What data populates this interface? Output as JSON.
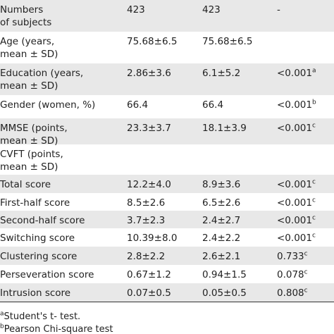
{
  "table": {
    "rows": [
      {
        "cells": [
          "Numbers\nof subjects",
          "423",
          "423",
          "-"
        ]
      },
      {
        "cells": [
          "Age (years,\nmean ± SD)",
          "75.68±6.5",
          "75.68±6.5"
        ]
      },
      {
        "cells": [
          "Education (years,\nmean ± SD)",
          "2.86±3.6",
          "6.1±5.2",
          "<0.001"
        ],
        "sup": "a"
      },
      {
        "cells": [
          "Gender (women, %)",
          "66.4",
          "66.4",
          "<0.001"
        ],
        "sup": "b"
      },
      {
        "cells": [
          "MMSE (points,\nmean ± SD)",
          "23.3±3.7",
          "18.1±3.9",
          "<0.001"
        ],
        "sup": "c"
      },
      {
        "cells": [
          "CVFT (points,\nmean ± SD)"
        ]
      },
      {
        "cells": [
          "Total score",
          "12.2±4.0",
          "8.9±3.6",
          "<0.001"
        ],
        "sup": "c"
      },
      {
        "cells": [
          "First-half score",
          "8.5±2.6",
          "6.5±2.6",
          "<0.001"
        ],
        "sup": "c"
      },
      {
        "cells": [
          "Second-half score",
          "3.7±2.3",
          "2.4±2.7",
          "<0.001"
        ],
        "sup": "c"
      },
      {
        "cells": [
          "Switching score",
          "10.39±8.0",
          "2.4±2.2",
          "<0.001"
        ],
        "sup": "c"
      },
      {
        "cells": [
          "Clustering score",
          "2.8±2.2",
          "2.6±2.1",
          "0.733"
        ],
        "sup": "c"
      },
      {
        "cells": [
          "Perseveration score",
          "0.67±1.2",
          "0.94±1.5",
          "0.078"
        ],
        "sup": "c"
      },
      {
        "cells": [
          "Intrusion score",
          "0.07±0.5",
          "0.05±0.5",
          "0.808"
        ],
        "sup": "c"
      }
    ]
  },
  "footnotes": [
    {
      "mark": "a",
      "text": "Student's t- test."
    },
    {
      "mark": "b",
      "text": "Pearson Chi-square test"
    }
  ]
}
